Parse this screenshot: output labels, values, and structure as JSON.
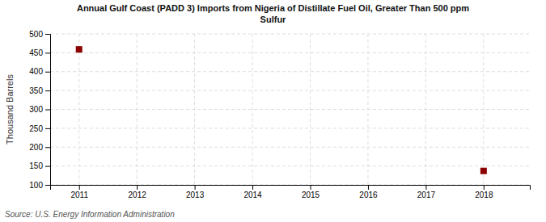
{
  "chart_data": {
    "type": "scatter",
    "title": "Annual Gulf Coast (PADD 3) Imports from Nigeria of Distillate Fuel Oil, Greater Than 500 ppm\nSulfur",
    "ylabel": "Thousand Barrels",
    "source": "Source: U.S. Energy Information Administration",
    "x": [
      2011,
      2018
    ],
    "values": [
      459,
      137
    ],
    "color": "#8b0000",
    "marker": "square",
    "xlim": [
      2010.5,
      2018.8
    ],
    "ylim": [
      100,
      500
    ],
    "xticks": [
      2011,
      2012,
      2013,
      2014,
      2015,
      2016,
      2017,
      2018
    ],
    "yticks": [
      100,
      150,
      200,
      250,
      300,
      350,
      400,
      450,
      500
    ],
    "grid": true
  }
}
